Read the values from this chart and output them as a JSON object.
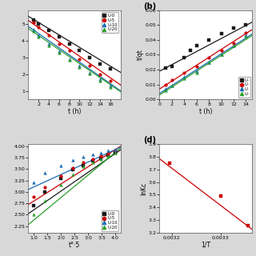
{
  "panel_a": {
    "label": "",
    "xlabel": "t (h)",
    "ylabel": "",
    "xlim": [
      0,
      18
    ],
    "ylim": [
      0.5,
      5.8
    ],
    "xticks": [
      2,
      4,
      6,
      8,
      10,
      12,
      14,
      16
    ],
    "series": [
      {
        "name": "U-0",
        "color": "#1a1a1a",
        "marker": "s",
        "x": [
          1,
          2,
          4,
          6,
          8,
          10,
          12,
          14,
          16
        ],
        "y": [
          5.2,
          5.0,
          4.6,
          4.2,
          3.8,
          3.4,
          3.0,
          2.6,
          2.3
        ],
        "line_x": [
          0,
          18
        ],
        "line_y": [
          5.45,
          2.1
        ]
      },
      {
        "name": "U-5",
        "color": "#cc0000",
        "marker": "o",
        "x": [
          1,
          2,
          4,
          6,
          8,
          10,
          12,
          14,
          16
        ],
        "y": [
          5.1,
          4.8,
          4.3,
          3.8,
          3.4,
          2.9,
          2.5,
          2.0,
          1.6
        ],
        "line_x": [
          0,
          18
        ],
        "line_y": [
          5.2,
          1.35
        ]
      },
      {
        "name": "U-10",
        "color": "#1a6bb5",
        "marker": "^",
        "x": [
          1,
          2,
          4,
          6,
          8,
          10,
          12,
          14,
          16
        ],
        "y": [
          4.65,
          4.3,
          3.8,
          3.35,
          2.9,
          2.5,
          2.1,
          1.7,
          1.3
        ],
        "line_x": [
          0,
          18
        ],
        "line_y": [
          4.85,
          1.0
        ]
      },
      {
        "name": "U-20",
        "color": "#2ca02c",
        "marker": "^",
        "x": [
          1,
          2,
          4,
          6,
          8,
          10,
          12,
          14,
          16
        ],
        "y": [
          4.55,
          4.2,
          3.7,
          3.25,
          2.82,
          2.42,
          2.02,
          1.62,
          1.22
        ],
        "line_x": [
          0,
          18
        ],
        "line_y": [
          4.72,
          0.95
        ]
      }
    ]
  },
  "panel_b": {
    "label": "(b)",
    "xlabel": "t (h)",
    "ylabel": "t/qt",
    "xlim": [
      0,
      15
    ],
    "ylim": [
      0.0,
      0.06
    ],
    "yticks": [
      0.0,
      0.01,
      0.02,
      0.03,
      0.04,
      0.05,
      0.06
    ],
    "xticks": [
      0,
      2,
      4,
      6,
      8,
      10,
      12,
      14
    ],
    "series": [
      {
        "name": "U-0",
        "color": "#1a1a1a",
        "marker": "s",
        "x": [
          1,
          2,
          4,
          5,
          6,
          8,
          10,
          12,
          14
        ],
        "y": [
          0.021,
          0.022,
          0.028,
          0.033,
          0.036,
          0.04,
          0.044,
          0.048,
          0.05
        ],
        "line_x": [
          0,
          15
        ],
        "line_y": [
          0.019,
          0.052
        ]
      },
      {
        "name": "U-5",
        "color": "#cc0000",
        "marker": "o",
        "x": [
          1,
          2,
          4,
          6,
          8,
          10,
          12,
          14
        ],
        "y": [
          0.01,
          0.013,
          0.018,
          0.022,
          0.028,
          0.033,
          0.038,
          0.045
        ],
        "line_x": [
          0,
          15
        ],
        "line_y": [
          0.007,
          0.047
        ]
      },
      {
        "name": "U-10",
        "color": "#1a6bb5",
        "marker": "^",
        "x": [
          1,
          2,
          4,
          6,
          8,
          10,
          12,
          14
        ],
        "y": [
          0.007,
          0.009,
          0.015,
          0.019,
          0.025,
          0.03,
          0.036,
          0.043
        ],
        "line_x": [
          0,
          15
        ],
        "line_y": [
          0.004,
          0.044
        ]
      },
      {
        "name": "U-20",
        "color": "#2ca02c",
        "marker": "^",
        "x": [
          1,
          2,
          4,
          6,
          8,
          10,
          12,
          14
        ],
        "y": [
          0.006,
          0.009,
          0.014,
          0.018,
          0.025,
          0.03,
          0.036,
          0.042
        ],
        "line_x": [
          0,
          15
        ],
        "line_y": [
          0.003,
          0.043
        ]
      }
    ]
  },
  "panel_c": {
    "label": "",
    "xlabel": "t°·5",
    "ylabel": "",
    "xlim": [
      0.8,
      4.2
    ],
    "ylim": [
      2.1,
      4.05
    ],
    "xticks": [
      1.0,
      1.5,
      2.0,
      2.5,
      3.0,
      3.5,
      4.0
    ],
    "series": [
      {
        "name": "U-0",
        "color": "#1a1a1a",
        "marker": "s",
        "x": [
          1.0,
          1.41,
          2.0,
          2.45,
          2.83,
          3.16,
          3.46,
          3.74,
          4.0
        ],
        "y": [
          2.7,
          3.0,
          3.3,
          3.48,
          3.58,
          3.68,
          3.74,
          3.8,
          3.85
        ],
        "line_x": [
          0.8,
          4.2
        ],
        "line_y": [
          2.52,
          3.92
        ]
      },
      {
        "name": "U-5",
        "color": "#cc0000",
        "marker": "o",
        "x": [
          1.0,
          1.41,
          2.0,
          2.45,
          2.83,
          3.16,
          3.46,
          3.74,
          4.0
        ],
        "y": [
          2.9,
          3.1,
          3.35,
          3.52,
          3.64,
          3.72,
          3.78,
          3.84,
          3.9
        ],
        "line_x": [
          0.8,
          4.2
        ],
        "line_y": [
          2.72,
          4.0
        ]
      },
      {
        "name": "U-10",
        "color": "#1a6bb5",
        "marker": "^",
        "x": [
          1.0,
          1.41,
          2.0,
          2.45,
          2.83,
          3.16,
          3.46,
          3.74,
          4.0
        ],
        "y": [
          3.2,
          3.42,
          3.58,
          3.7,
          3.76,
          3.82,
          3.86,
          3.9,
          3.93
        ],
        "line_x": [
          0.8,
          4.2
        ],
        "line_y": [
          3.05,
          3.98
        ]
      },
      {
        "name": "U-20",
        "color": "#2ca02c",
        "marker": "^",
        "x": [
          1.0,
          1.41,
          2.0,
          2.45,
          2.83,
          3.16,
          3.46,
          3.74,
          4.0
        ],
        "y": [
          2.5,
          2.8,
          3.15,
          3.38,
          3.55,
          3.65,
          3.72,
          3.78,
          3.85
        ],
        "line_x": [
          0.8,
          4.2
        ],
        "line_y": [
          2.28,
          3.96
        ]
      }
    ]
  },
  "panel_d": {
    "label": "(d)",
    "xlabel": "1/T",
    "ylabel": "lnKc",
    "xlim": [
      0.003175,
      0.003365
    ],
    "ylim": [
      3.2,
      3.9
    ],
    "yticks": [
      3.2,
      3.3,
      3.4,
      3.5,
      3.6,
      3.7,
      3.8,
      3.9
    ],
    "xticks": [
      0.0032,
      0.0033
    ],
    "series": [
      {
        "name": "",
        "color": "#cc0000",
        "marker": "s",
        "x": [
          0.003195,
          0.0033,
          0.003356
        ],
        "y": [
          3.75,
          3.49,
          3.26
        ],
        "line_x": [
          0.003175,
          0.003365
        ],
        "line_y": [
          3.782,
          3.228
        ]
      }
    ]
  },
  "bg_color": "#d8d8d8",
  "plot_bg_color": "#ffffff",
  "legend_colors": [
    "#1a1a1a",
    "#cc0000",
    "#1a6bb5",
    "#2ca02c"
  ],
  "legend_names": [
    "U-0",
    "U-5",
    "U-10",
    "U-20"
  ],
  "legend_markers": [
    "s",
    "o",
    "^",
    "^"
  ]
}
